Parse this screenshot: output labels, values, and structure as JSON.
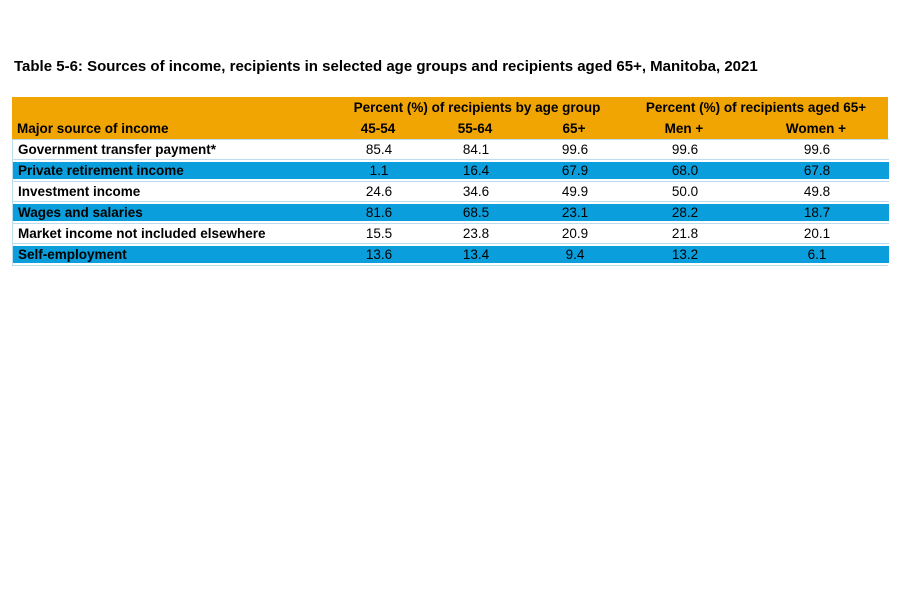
{
  "page": {
    "title": "Table 5-6: Sources of income, recipients in selected age groups and recipients aged 65+, Manitoba, 2021"
  },
  "colors": {
    "header_orange": "#F0A502",
    "stripe_blue": "#0A9FDC",
    "row_border_light_blue": "#BCDCF0",
    "text": "#000000",
    "background": "#FFFFFF"
  },
  "table": {
    "group_headers": [
      {
        "label": "Percent (%) of recipients by age group"
      },
      {
        "label": "Percent (%) of recipients aged 65+"
      }
    ],
    "columns": [
      "Major source of income",
      "45-54",
      "55-64",
      "65+",
      "Men +",
      "Women +"
    ],
    "rows": [
      {
        "label": "Government transfer payment*",
        "values": [
          "85.4",
          "84.1",
          "99.6",
          "99.6",
          "99.6"
        ]
      },
      {
        "label": "Private retirement income",
        "values": [
          "1.1",
          "16.4",
          "67.9",
          "68.0",
          "67.8"
        ]
      },
      {
        "label": "Investment income",
        "values": [
          "24.6",
          "34.6",
          "49.9",
          "50.0",
          "49.8"
        ]
      },
      {
        "label": "Wages and salaries",
        "values": [
          "81.6",
          "68.5",
          "23.1",
          "28.2",
          "18.7"
        ]
      },
      {
        "label": "Market income not included elsewhere",
        "values": [
          "15.5",
          "23.8",
          "20.9",
          "21.8",
          "20.1"
        ]
      },
      {
        "label": "Self-employment",
        "values": [
          "13.6",
          "13.4",
          "9.4",
          "13.2",
          "6.1"
        ]
      }
    ]
  },
  "chart_data": {
    "type": "table",
    "title": "Table 5-6: Sources of income, recipients in selected age groups and recipients aged 65+, Manitoba, 2021",
    "row_header": "Major source of income",
    "column_groups": [
      {
        "label": "Percent (%) of recipients by age group",
        "columns": [
          "45-54",
          "55-64",
          "65+"
        ]
      },
      {
        "label": "Percent (%) of recipients aged 65+",
        "columns": [
          "Men +",
          "Women +"
        ]
      }
    ],
    "categories": [
      "Government transfer payment*",
      "Private retirement income",
      "Investment income",
      "Wages and salaries",
      "Market income not included elsewhere",
      "Self-employment"
    ],
    "series": [
      {
        "name": "45-54",
        "values": [
          85.4,
          1.1,
          24.6,
          81.6,
          15.5,
          13.6
        ]
      },
      {
        "name": "55-64",
        "values": [
          84.1,
          16.4,
          34.6,
          68.5,
          23.8,
          13.4
        ]
      },
      {
        "name": "65+",
        "values": [
          99.6,
          67.9,
          49.9,
          23.1,
          20.9,
          9.4
        ]
      },
      {
        "name": "Men +",
        "values": [
          99.6,
          68.0,
          50.0,
          28.2,
          21.8,
          13.2
        ]
      },
      {
        "name": "Women +",
        "values": [
          99.6,
          67.8,
          49.8,
          18.7,
          20.1,
          6.1
        ]
      }
    ]
  }
}
